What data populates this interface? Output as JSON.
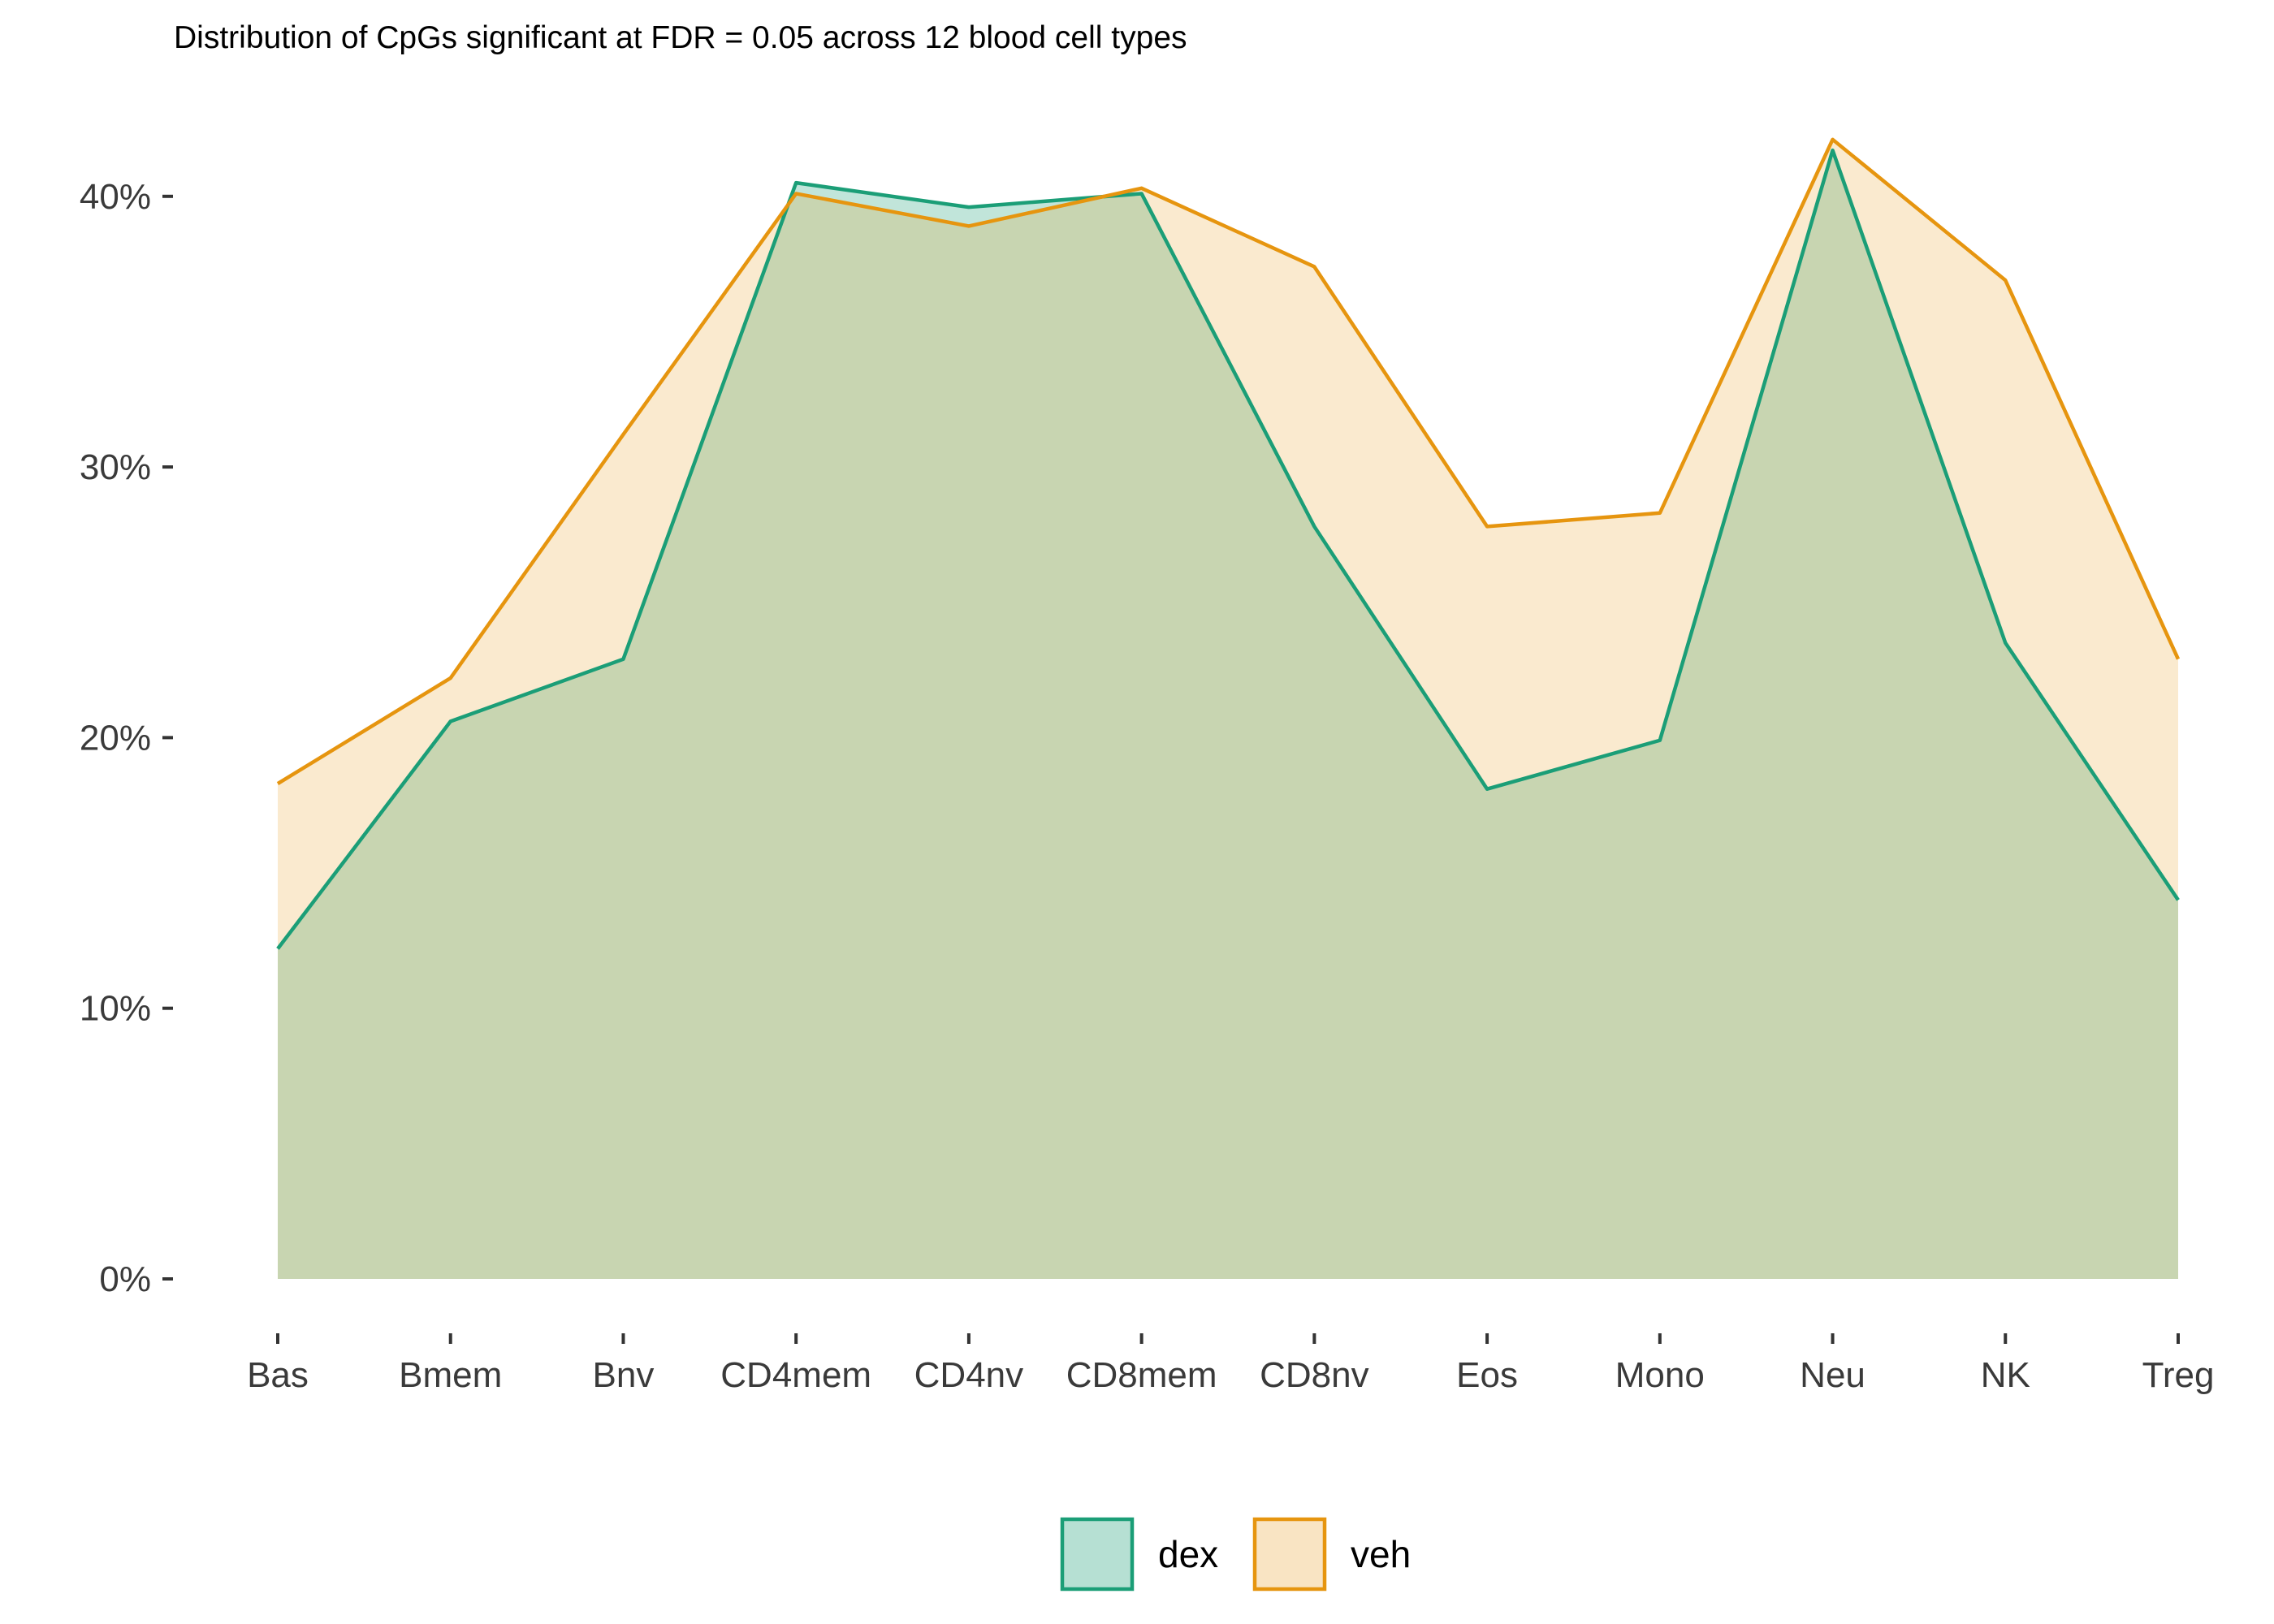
{
  "chart_data": {
    "type": "area",
    "title": "Distribution of CpGs significant at FDR = 0.05 across 12 blood cell types",
    "xlabel": "",
    "ylabel": "",
    "categories": [
      "Bas",
      "Bmem",
      "Bnv",
      "CD4mem",
      "CD4nv",
      "CD8mem",
      "CD8nv",
      "Eos",
      "Mono",
      "Neu",
      "NK",
      "Treg"
    ],
    "ylim": [
      0,
      0.45
    ],
    "yticks": [
      0,
      0.1,
      0.2,
      0.3,
      0.4
    ],
    "ytick_labels": [
      "0%",
      "10%",
      "20%",
      "30%",
      "40%"
    ],
    "grid": false,
    "legend_position": "bottom",
    "series": [
      {
        "name": "dex",
        "values": [
          0.122,
          0.206,
          0.229,
          0.405,
          0.396,
          0.401,
          0.278,
          0.181,
          0.199,
          0.417,
          0.235,
          0.14
        ],
        "line_color": "#1b9e77",
        "fill_color": "#1b9e77",
        "fill_opacity": 0.27
      },
      {
        "name": "veh",
        "values": [
          0.183,
          0.222,
          0.312,
          0.401,
          0.389,
          0.403,
          0.374,
          0.278,
          0.283,
          0.421,
          0.369,
          0.229
        ],
        "line_color": "#e6950f",
        "fill_color": "#e6950f",
        "fill_opacity": 0.2
      }
    ]
  }
}
